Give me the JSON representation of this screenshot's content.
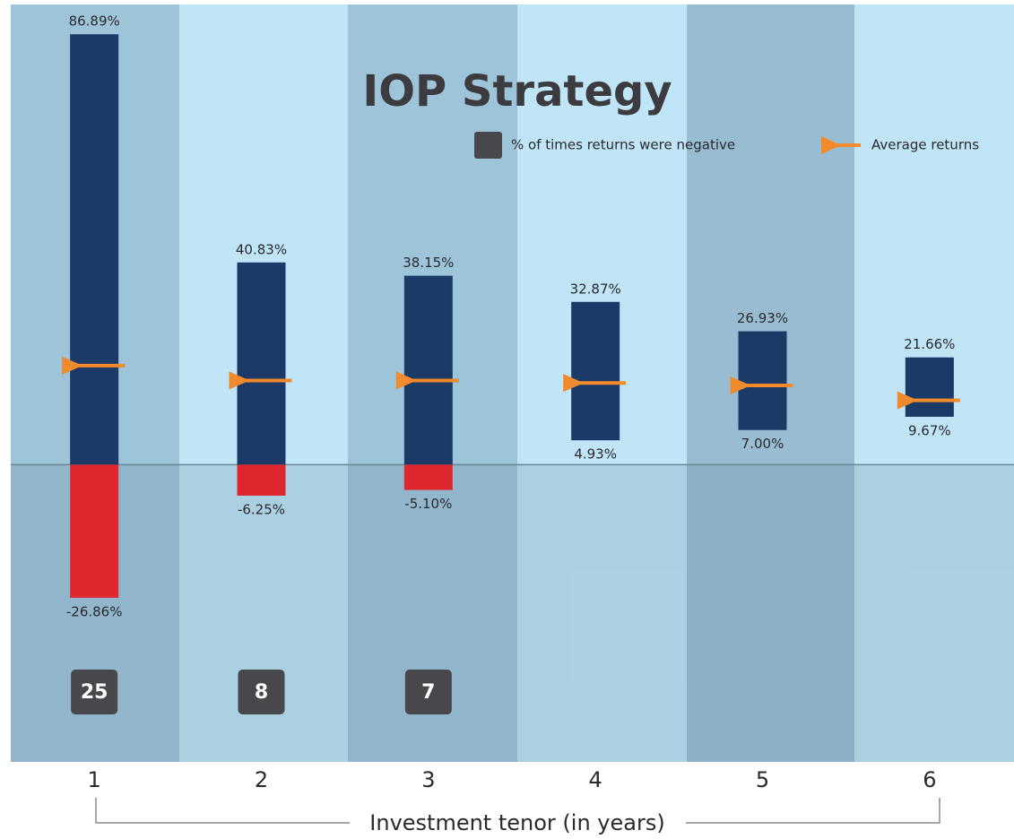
{
  "chart_data": {
    "type": "floating_bar",
    "title": "IOP Strategy",
    "x_label": "Investment tenor (in years)",
    "categories": [
      "1",
      "2",
      "3",
      "4",
      "5",
      "6"
    ],
    "max": {
      "color": "#1b3a68",
      "values": [
        86.89,
        40.83,
        38.15,
        32.87,
        26.93,
        21.66
      ],
      "value_labels": [
        "86.89%",
        "40.83%",
        "38.15%",
        "32.87%",
        "26.93%",
        "21.66%"
      ]
    },
    "min": {
      "color": "#e0262f",
      "values": [
        -26.86,
        -6.25,
        -5.1,
        4.93,
        7.0,
        9.67
      ],
      "value_labels": [
        "-26.86%",
        "-6.25%",
        "-5.10%",
        "4.93%",
        "7.00%",
        "9.67%"
      ]
    },
    "average": {
      "name": "Average returns",
      "color": "#f08a2c",
      "values": [
        20,
        17,
        17,
        16.5,
        16,
        13
      ]
    },
    "negative": {
      "name": "% of times returns were negative",
      "color": "#47474c",
      "values": [
        25,
        8,
        7,
        null,
        null,
        null
      ]
    },
    "ylim": [
      -60,
      92
    ]
  }
}
